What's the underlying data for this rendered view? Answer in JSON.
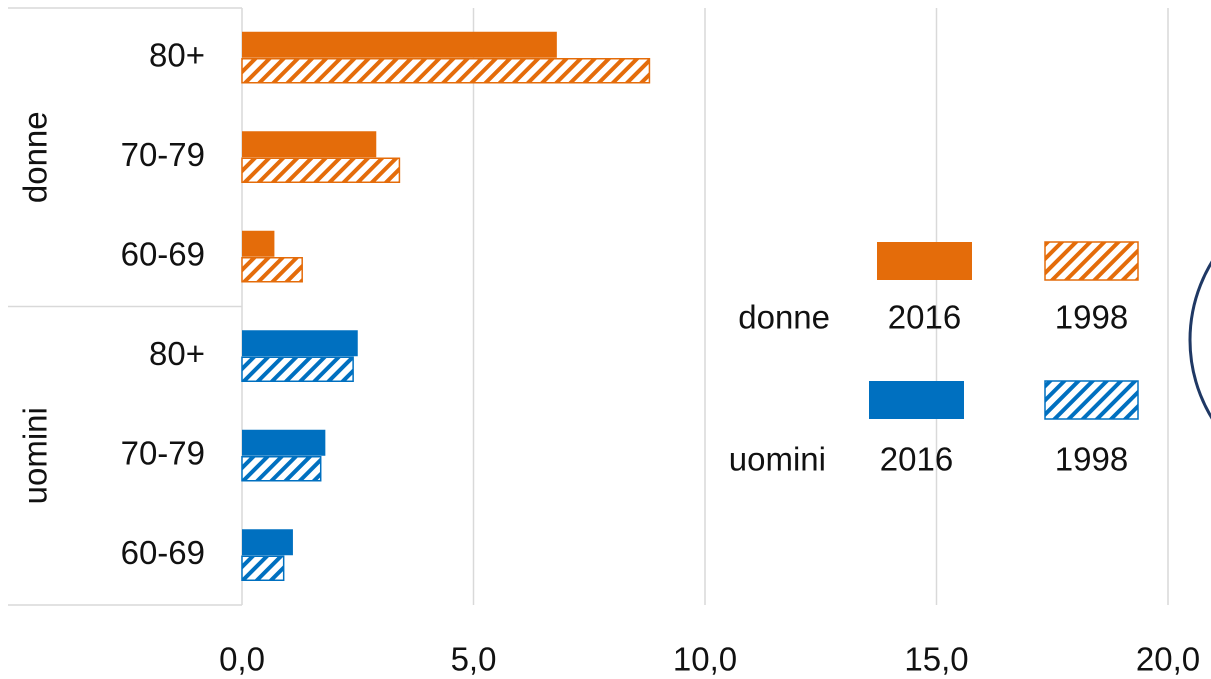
{
  "chart_data": {
    "type": "bar",
    "orientation": "horizontal",
    "groups": [
      {
        "name": "donne",
        "categories": [
          "80+",
          "70-79",
          "60-69"
        ],
        "series": [
          {
            "name": "2016",
            "color": "#e46c0a",
            "pattern": "solid",
            "values": [
              6.8,
              2.9,
              0.7
            ]
          },
          {
            "name": "1998",
            "color": "#e46c0a",
            "pattern": "hatch",
            "values": [
              8.8,
              3.4,
              1.3
            ]
          }
        ]
      },
      {
        "name": "uomini",
        "categories": [
          "80+",
          "70-79",
          "60-69"
        ],
        "series": [
          {
            "name": "2016",
            "color": "#0070c0",
            "pattern": "solid",
            "values": [
              2.5,
              1.8,
              1.1
            ]
          },
          {
            "name": "1998",
            "color": "#0070c0",
            "pattern": "hatch",
            "values": [
              2.4,
              1.7,
              0.9
            ]
          }
        ]
      }
    ],
    "xlim": [
      0,
      20
    ],
    "xticks": [
      {
        "value": 0,
        "label": "0,0"
      },
      {
        "value": 5,
        "label": "5,0"
      },
      {
        "value": 10,
        "label": "10,0"
      },
      {
        "value": 15,
        "label": "15,0"
      },
      {
        "value": 20,
        "label": "20,0"
      }
    ],
    "grid": true
  }
}
